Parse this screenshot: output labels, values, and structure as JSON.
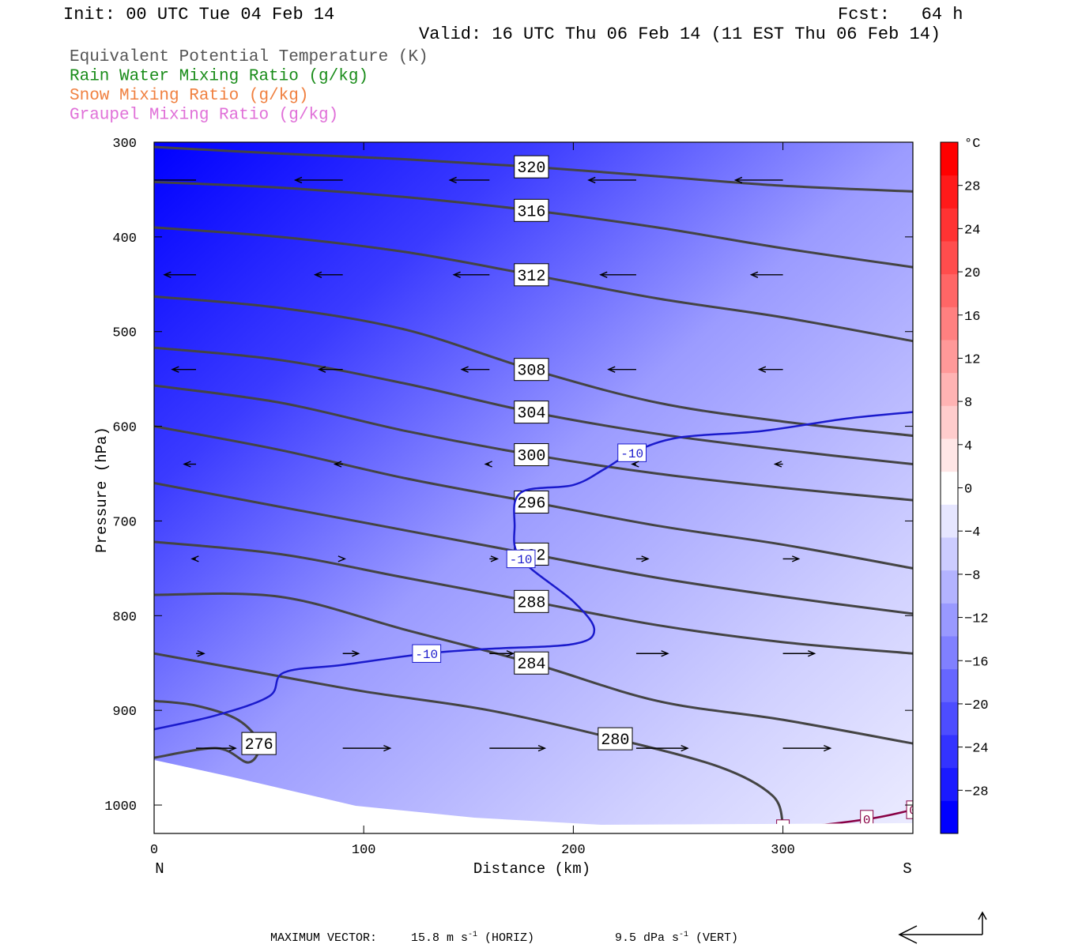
{
  "header": {
    "init": "Init: 00 UTC Tue 04 Feb 14",
    "fcst": "Fcst:   64 h",
    "valid": "Valid: 16 UTC Thu 06 Feb 14 (11 EST Thu 06 Feb 14)"
  },
  "legend": [
    {
      "text": "Equivalent Potential Temperature (K)",
      "color": "#555555"
    },
    {
      "text": "Rain Water Mixing Ratio (g/kg)",
      "color": "#1a8c1a"
    },
    {
      "text": "Snow Mixing Ratio (g/kg)",
      "color": "#f08040"
    },
    {
      "text": "Graupel Mixing Ratio (g/kg)",
      "color": "#e070d8"
    }
  ],
  "footer": {
    "max_vector_label": "MAXIMUM VECTOR:",
    "horiz_value": "15.8 m s",
    "horiz_exp": "-1",
    "horiz_unit": "(HORIZ)",
    "vert_value": "9.5 dPa s",
    "vert_exp": "-1",
    "vert_unit": "(VERT)"
  },
  "chart_data": {
    "type": "cross-section",
    "xlabel": "Distance (km)",
    "ylabel": "Pressure (hPa)",
    "xlim": [
      0,
      362
    ],
    "ylim": [
      1030,
      300
    ],
    "x_ticks": [
      0,
      100,
      200,
      300
    ],
    "y_ticks": [
      300,
      400,
      500,
      600,
      700,
      800,
      900,
      1000
    ],
    "x_end_labels": {
      "left": "N",
      "right": "S"
    },
    "colorbar": {
      "unit": "°C",
      "range": [
        -32,
        32
      ],
      "tick_labels": [
        28,
        24,
        20,
        16,
        12,
        8,
        4,
        0,
        -4,
        -8,
        -12,
        -16,
        -20,
        -24,
        -28
      ],
      "colors": [
        "#0000ff",
        "#1a1aff",
        "#3333ff",
        "#4d4dff",
        "#6666ff",
        "#8080ff",
        "#9999ff",
        "#b3b3ff",
        "#ccccff",
        "#e6e6ff",
        "#ffffff",
        "#ffe6e6",
        "#ffcccc",
        "#ffb3b3",
        "#ff9999",
        "#ff8080",
        "#ff6666",
        "#ff4d4d",
        "#ff3333",
        "#ff1a1a",
        "#ff0000"
      ]
    },
    "theta_e_contours": [
      {
        "value": 320,
        "points": [
          [
            0,
            305
          ],
          [
            60,
            312
          ],
          [
            120,
            318
          ],
          [
            180,
            326
          ],
          [
            240,
            336
          ],
          [
            300,
            346
          ],
          [
            362,
            352
          ]
        ]
      },
      {
        "value": 316,
        "points": [
          [
            0,
            342
          ],
          [
            60,
            348
          ],
          [
            120,
            358
          ],
          [
            180,
            372
          ],
          [
            240,
            390
          ],
          [
            300,
            412
          ],
          [
            362,
            432
          ]
        ]
      },
      {
        "value": 312,
        "points": [
          [
            0,
            390
          ],
          [
            60,
            400
          ],
          [
            120,
            416
          ],
          [
            180,
            440
          ],
          [
            240,
            465
          ],
          [
            300,
            485
          ],
          [
            362,
            510
          ]
        ]
      },
      {
        "value": 308,
        "points": [
          [
            0,
            463
          ],
          [
            60,
            475
          ],
          [
            120,
            498
          ],
          [
            180,
            540
          ],
          [
            240,
            575
          ],
          [
            300,
            595
          ],
          [
            362,
            610
          ]
        ]
      },
      {
        "value": 304,
        "points": [
          [
            0,
            517
          ],
          [
            60,
            530
          ],
          [
            120,
            555
          ],
          [
            180,
            585
          ],
          [
            240,
            608
          ],
          [
            300,
            625
          ],
          [
            362,
            640
          ]
        ]
      },
      {
        "value": 300,
        "points": [
          [
            0,
            557
          ],
          [
            60,
            575
          ],
          [
            120,
            605
          ],
          [
            180,
            630
          ],
          [
            240,
            650
          ],
          [
            300,
            665
          ],
          [
            362,
            678
          ]
        ]
      },
      {
        "value": 296,
        "points": [
          [
            0,
            600
          ],
          [
            60,
            625
          ],
          [
            120,
            655
          ],
          [
            180,
            680
          ],
          [
            240,
            705
          ],
          [
            300,
            725
          ],
          [
            362,
            750
          ]
        ]
      },
      {
        "value": 292,
        "points": [
          [
            0,
            660
          ],
          [
            60,
            685
          ],
          [
            120,
            710
          ],
          [
            180,
            735
          ],
          [
            240,
            760
          ],
          [
            300,
            780
          ],
          [
            362,
            798
          ]
        ]
      },
      {
        "value": 288,
        "points": [
          [
            0,
            722
          ],
          [
            60,
            735
          ],
          [
            120,
            760
          ],
          [
            180,
            785
          ],
          [
            240,
            810
          ],
          [
            300,
            828
          ],
          [
            362,
            840
          ]
        ]
      },
      {
        "value": 284,
        "points": [
          [
            0,
            778
          ],
          [
            60,
            780
          ],
          [
            120,
            815
          ],
          [
            180,
            850
          ],
          [
            240,
            890
          ],
          [
            300,
            910
          ],
          [
            362,
            935
          ]
        ]
      },
      {
        "value": 280,
        "points": [
          [
            0,
            840
          ],
          [
            50,
            860
          ],
          [
            100,
            880
          ],
          [
            160,
            900
          ],
          [
            220,
            930
          ],
          [
            270,
            960
          ],
          [
            295,
            990
          ],
          [
            300,
            1020
          ]
        ]
      },
      {
        "value": 276,
        "points": [
          [
            0,
            950
          ],
          [
            30,
            940
          ],
          [
            45,
            955
          ],
          [
            50,
            935
          ],
          [
            40,
            910
          ],
          [
            20,
            895
          ],
          [
            0,
            890
          ]
        ]
      }
    ],
    "temperature_contours": [
      {
        "value": -10,
        "points": [
          [
            0,
            920
          ],
          [
            30,
            905
          ],
          [
            55,
            885
          ],
          [
            62,
            860
          ],
          [
            90,
            852
          ],
          [
            130,
            840
          ],
          [
            160,
            835
          ],
          [
            200,
            830
          ],
          [
            210,
            815
          ],
          [
            200,
            785
          ],
          [
            175,
            740
          ],
          [
            172,
            705
          ],
          [
            175,
            670
          ],
          [
            200,
            662
          ],
          [
            215,
            645
          ],
          [
            228,
            628
          ],
          [
            250,
            612
          ],
          [
            290,
            605
          ],
          [
            330,
            592
          ],
          [
            362,
            585
          ]
        ]
      },
      {
        "value": 0,
        "points": [
          [
            260,
            1030
          ],
          [
            300,
            1025
          ],
          [
            340,
            1015
          ],
          [
            362,
            1005
          ]
        ]
      }
    ],
    "wind_vectors": [
      {
        "x": 20,
        "p": 340,
        "u": -15.0,
        "w": 0.0
      },
      {
        "x": 90,
        "p": 340,
        "u": -12.0,
        "w": 0.0
      },
      {
        "x": 160,
        "p": 340,
        "u": -10.0,
        "w": 0.0
      },
      {
        "x": 230,
        "p": 340,
        "u": -12.0,
        "w": 0.0
      },
      {
        "x": 300,
        "p": 340,
        "u": -12.0,
        "w": 0.0
      },
      {
        "x": 20,
        "p": 440,
        "u": -8.0,
        "w": 0.0
      },
      {
        "x": 90,
        "p": 440,
        "u": -7.0,
        "w": 0.0
      },
      {
        "x": 160,
        "p": 440,
        "u": -9.0,
        "w": 0.0
      },
      {
        "x": 230,
        "p": 440,
        "u": -9.0,
        "w": 0.0
      },
      {
        "x": 300,
        "p": 440,
        "u": -8.0,
        "w": 0.0
      },
      {
        "x": 20,
        "p": 540,
        "u": -6.0,
        "w": 0.0
      },
      {
        "x": 90,
        "p": 540,
        "u": -6.0,
        "w": 0.0
      },
      {
        "x": 160,
        "p": 540,
        "u": -7.0,
        "w": 0.0
      },
      {
        "x": 230,
        "p": 540,
        "u": -7.0,
        "w": 0.0
      },
      {
        "x": 300,
        "p": 540,
        "u": -6.0,
        "w": 0.0
      },
      {
        "x": 20,
        "p": 640,
        "u": -3.0,
        "w": 0.0
      },
      {
        "x": 90,
        "p": 640,
        "u": -2.0,
        "w": 0.0
      },
      {
        "x": 160,
        "p": 640,
        "u": -1.0,
        "w": 0.0
      },
      {
        "x": 230,
        "p": 640,
        "u": -1.0,
        "w": 0.0
      },
      {
        "x": 300,
        "p": 640,
        "u": -2.0,
        "w": 0.0
      },
      {
        "x": 20,
        "p": 740,
        "u": -1.0,
        "w": 0.0
      },
      {
        "x": 90,
        "p": 740,
        "u": 0.5,
        "w": 0.0
      },
      {
        "x": 160,
        "p": 740,
        "u": 2.0,
        "w": 0.0
      },
      {
        "x": 230,
        "p": 740,
        "u": 3.0,
        "w": 0.0
      },
      {
        "x": 300,
        "p": 740,
        "u": 4.0,
        "w": 0.0
      },
      {
        "x": 20,
        "p": 840,
        "u": 2.0,
        "w": 0.0
      },
      {
        "x": 90,
        "p": 840,
        "u": 4.0,
        "w": 0.0
      },
      {
        "x": 160,
        "p": 840,
        "u": 6.0,
        "w": 0.0
      },
      {
        "x": 230,
        "p": 840,
        "u": 8.0,
        "w": 0.0
      },
      {
        "x": 300,
        "p": 840,
        "u": 8.0,
        "w": 0.0
      },
      {
        "x": 20,
        "p": 940,
        "u": 10.0,
        "w": 0.0
      },
      {
        "x": 90,
        "p": 940,
        "u": 12.0,
        "w": 0.0
      },
      {
        "x": 160,
        "p": 940,
        "u": 14.0,
        "w": 0.0
      },
      {
        "x": 230,
        "p": 940,
        "u": 13.0,
        "w": 0.0
      },
      {
        "x": 300,
        "p": 940,
        "u": 12.0,
        "w": 0.0
      }
    ]
  }
}
